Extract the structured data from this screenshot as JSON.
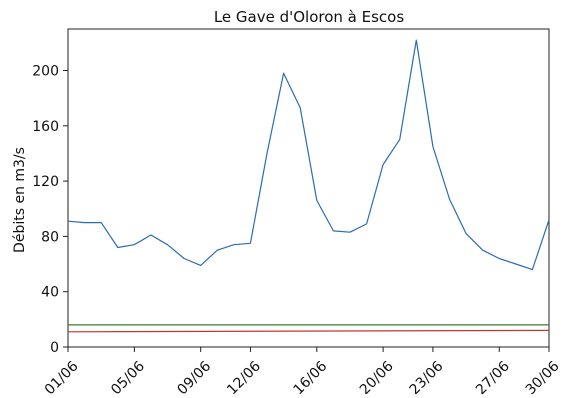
{
  "chart_data": {
    "type": "line",
    "title": "Le Gave d'Oloron à Escos",
    "xlabel": "",
    "ylabel": "Débits en m3/s",
    "ylim": [
      0,
      230
    ],
    "yticks": [
      0,
      40,
      80,
      120,
      160,
      200
    ],
    "xlim": [
      1,
      30
    ],
    "xtick_days": [
      1,
      5,
      9,
      12,
      16,
      20,
      23,
      27,
      30
    ],
    "xtick_labels": [
      "01/06",
      "05/06",
      "09/06",
      "12/06",
      "16/06",
      "20/06",
      "23/06",
      "27/06",
      "30/06"
    ],
    "grid": false,
    "legend": "none",
    "series": [
      {
        "color": "#2b6cb0",
        "days": [
          1,
          2,
          3,
          4,
          5,
          6,
          7,
          8,
          9,
          10,
          11,
          12,
          13,
          14,
          15,
          16,
          17,
          18,
          19,
          20,
          21,
          22,
          23,
          24,
          25,
          26,
          27,
          28,
          29,
          30
        ],
        "values": [
          91,
          90,
          90,
          72,
          74,
          81,
          74,
          64,
          59,
          70,
          74,
          75,
          140,
          198,
          173,
          106,
          84,
          83,
          89,
          132,
          150,
          222,
          145,
          107,
          82,
          70,
          64,
          60,
          56,
          92
        ]
      },
      {
        "color": "#3a7d2c",
        "days": [
          1,
          30
        ],
        "values": [
          16,
          16
        ]
      },
      {
        "color": "#c0392b",
        "days": [
          1,
          30
        ],
        "values": [
          11,
          12
        ]
      }
    ]
  }
}
